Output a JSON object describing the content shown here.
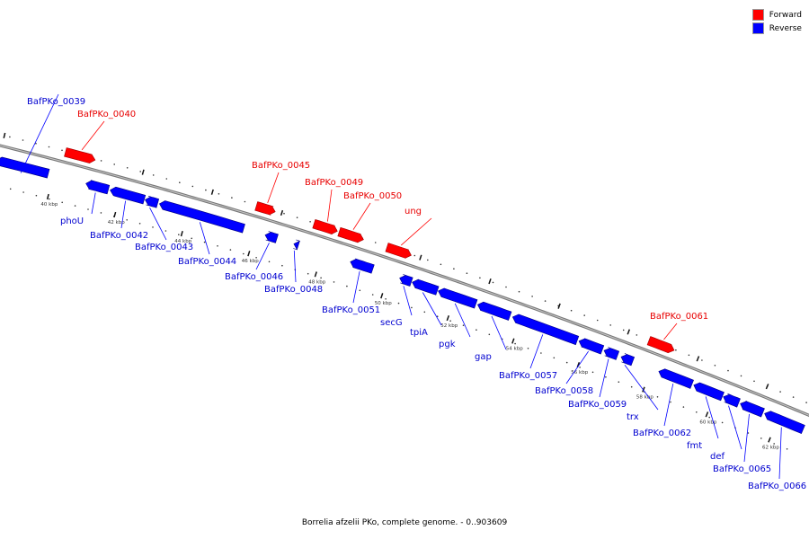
{
  "legend": {
    "forward_label": "Forward",
    "reverse_label": "Reverse",
    "forward_color": "#ff0000",
    "reverse_color": "#0000ff"
  },
  "caption": "Borrelia afzelii PKo, complete genome. - 0..903609",
  "ticks": [
    {
      "kbp": 40,
      "label": "40 kbp"
    },
    {
      "kbp": 42,
      "label": "42 kbp"
    },
    {
      "kbp": 44,
      "label": "44 kbp"
    },
    {
      "kbp": 46,
      "label": "46 kbp"
    },
    {
      "kbp": 48,
      "label": "48 kbp"
    },
    {
      "kbp": 50,
      "label": "50 kbp"
    },
    {
      "kbp": 52,
      "label": "52 kbp"
    },
    {
      "kbp": 54,
      "label": "54 kbp"
    },
    {
      "kbp": 56,
      "label": "56 kbp"
    },
    {
      "kbp": 58,
      "label": "58 kbp"
    },
    {
      "kbp": 60,
      "label": "60 kbp"
    },
    {
      "kbp": 62,
      "label": "62 kbp"
    }
  ],
  "genes": [
    {
      "name": "BafPKo_0039",
      "strand": "reverse"
    },
    {
      "name": "BafPKo_0040",
      "strand": "forward"
    },
    {
      "name": "phoU",
      "strand": "reverse"
    },
    {
      "name": "BafPKo_0042",
      "strand": "reverse"
    },
    {
      "name": "BafPKo_0043",
      "strand": "reverse"
    },
    {
      "name": "BafPKo_0044",
      "strand": "reverse"
    },
    {
      "name": "BafPKo_0045",
      "strand": "forward"
    },
    {
      "name": "BafPKo_0046",
      "strand": "reverse"
    },
    {
      "name": "BafPKo_0048",
      "strand": "reverse"
    },
    {
      "name": "BafPKo_0049",
      "strand": "forward"
    },
    {
      "name": "BafPKo_0050",
      "strand": "forward"
    },
    {
      "name": "ung",
      "strand": "forward"
    },
    {
      "name": "BafPKo_0051",
      "strand": "reverse"
    },
    {
      "name": "secG",
      "strand": "reverse"
    },
    {
      "name": "tpiA",
      "strand": "reverse"
    },
    {
      "name": "pgk",
      "strand": "reverse"
    },
    {
      "name": "gap",
      "strand": "reverse"
    },
    {
      "name": "BafPKo_0057",
      "strand": "reverse"
    },
    {
      "name": "BafPKo_0058",
      "strand": "reverse"
    },
    {
      "name": "BafPKo_0059",
      "strand": "reverse"
    },
    {
      "name": "trx",
      "strand": "reverse"
    },
    {
      "name": "BafPKo_0061",
      "strand": "forward"
    },
    {
      "name": "BafPKo_0062",
      "strand": "reverse"
    },
    {
      "name": "fmt",
      "strand": "reverse"
    },
    {
      "name": "def",
      "strand": "reverse"
    },
    {
      "name": "BafPKo_0065",
      "strand": "reverse"
    },
    {
      "name": "BafPKo_0066",
      "strand": "reverse"
    }
  ]
}
